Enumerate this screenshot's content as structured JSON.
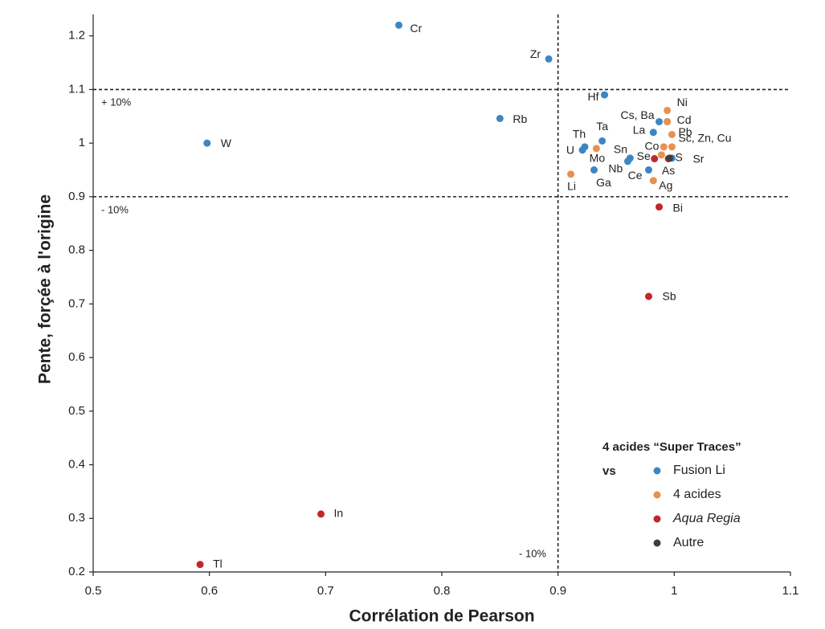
{
  "chart_data": {
    "type": "scatter",
    "xlabel": "Corrélation de Pearson",
    "ylabel": "Pente, forçée à l'origine",
    "xlim": [
      0.5,
      1.1
    ],
    "xticks": [
      0.5,
      0.6,
      0.7,
      0.8,
      0.9,
      1,
      1.1
    ],
    "ylim": [
      0.2,
      1.24
    ],
    "yticks": [
      0.2,
      0.3,
      0.4,
      0.5,
      0.6,
      0.7,
      0.8,
      0.9,
      1,
      1.1,
      1.2
    ],
    "reference_lines": {
      "y": [
        1.1,
        0.9
      ],
      "x": [
        0.9
      ]
    },
    "annotations": [
      "+ 10%",
      "- 10%",
      "- 10%"
    ],
    "legend_title": "4 acides “Super Traces”",
    "legend_subtitle": "vs",
    "legend_position": "lower right",
    "series": [
      {
        "name": "Fusion Li",
        "color": "#3c86c4",
        "x": [
          0.763,
          0.892,
          0.94,
          0.85,
          0.598,
          0.923,
          0.921,
          0.938,
          0.987,
          0.982,
          0.96,
          0.962,
          0.978,
          0.998,
          0.931,
          0.994
        ],
        "y": [
          1.22,
          1.157,
          1.09,
          1.046,
          1.0,
          0.993,
          0.987,
          1.004,
          1.04,
          1.02,
          0.966,
          0.972,
          0.95,
          0.972,
          0.95,
          1.04
        ],
        "labels": [
          "Cr",
          "Zr",
          "Hf",
          "Rb",
          "W",
          "Th",
          "U",
          "Ta",
          "Cs, Ba",
          "La",
          "Sn",
          "Nb",
          "Ce",
          "Sr",
          "Ga",
          null
        ]
      },
      {
        "name": "4 acides",
        "color": "#e8904e",
        "x": [
          0.994,
          0.994,
          0.998,
          0.998,
          0.991,
          0.989,
          0.933,
          0.911,
          0.982
        ],
        "y": [
          1.061,
          1.04,
          1.016,
          0.993,
          0.993,
          0.978,
          0.99,
          0.942,
          0.93
        ],
        "labels": [
          "Ni",
          "Cd",
          "Pb",
          "Sc, Zn, Cu",
          null,
          "Co",
          "Mo",
          "Li",
          "Ag"
        ]
      },
      {
        "name": "Aqua Regia",
        "color": "#c1272d",
        "x": [
          0.983,
          0.995,
          0.987,
          0.978,
          0.696,
          0.592
        ],
        "y": [
          0.971,
          0.971,
          0.881,
          0.714,
          0.308,
          0.214
        ],
        "labels": [
          "Se",
          "As",
          "Bi",
          "Sb",
          "In",
          "Tl"
        ]
      },
      {
        "name": "Autre",
        "color": "#3f3f3f",
        "x": [
          0.996
        ],
        "y": [
          0.972
        ],
        "labels": [
          "S"
        ]
      }
    ]
  }
}
